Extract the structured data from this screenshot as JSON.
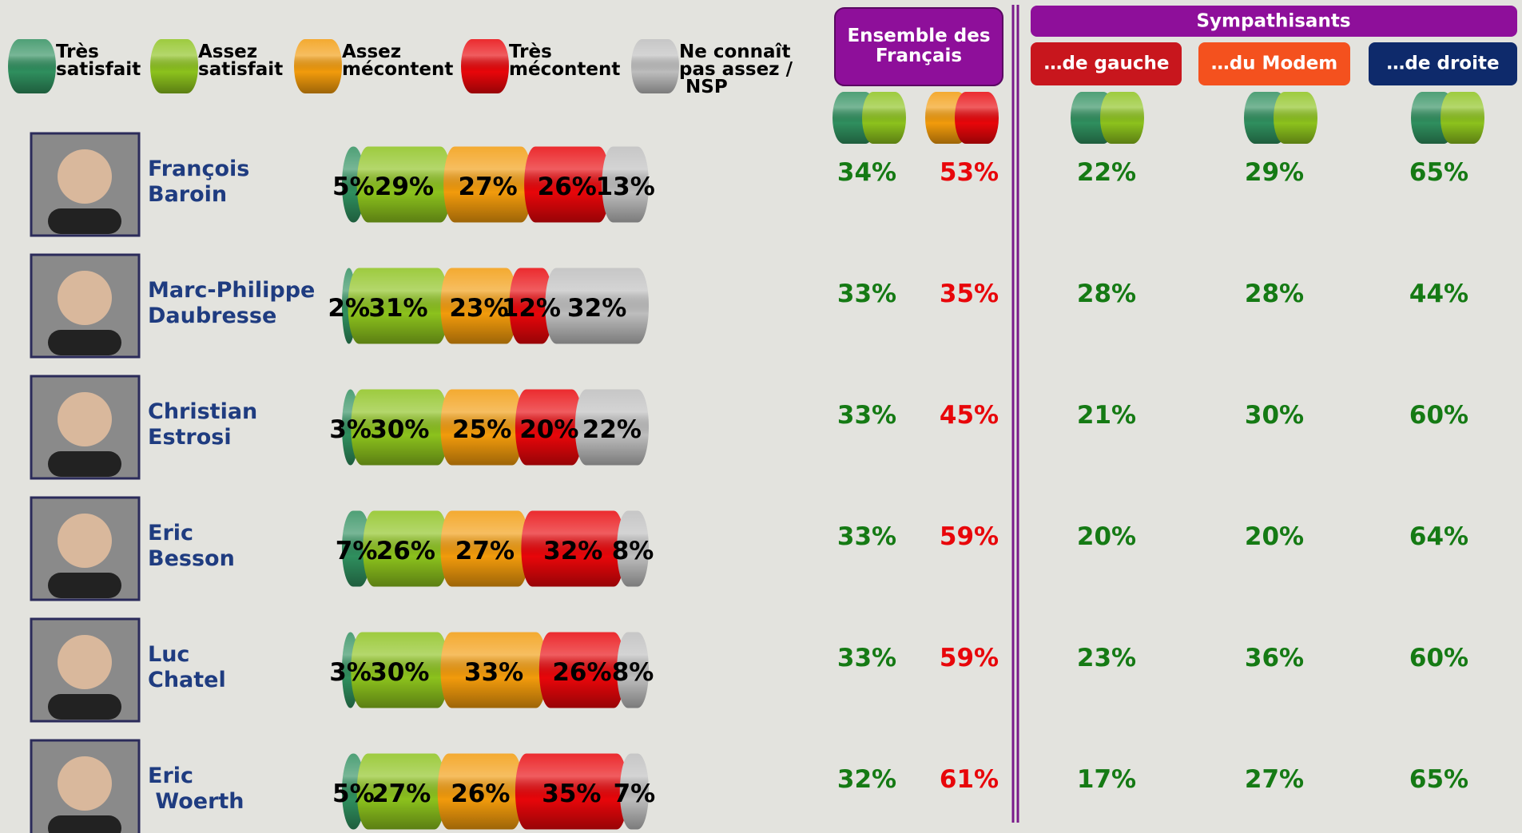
{
  "chart_data": {
    "type": "stacked-bar",
    "categories": [
      "François\nBaroin",
      "Marc-Philippe\nDaubresse",
      "Christian\nEstrosi",
      "Eric\nBesson",
      "Luc\nChatel",
      "Eric\n Woerth"
    ],
    "series": [
      {
        "name": "Très\nsatisfait",
        "color": "#2f8f5e",
        "values": [
          5,
          2,
          3,
          7,
          3,
          5
        ],
        "value_labels": [
          "5%",
          "2%",
          "3%",
          "7%",
          "3%",
          "5%"
        ]
      },
      {
        "name": "Assez\nsatisfait",
        "color": "#8cc21d",
        "values": [
          29,
          31,
          30,
          26,
          30,
          27
        ],
        "value_labels": [
          "29%",
          "31%",
          "30%",
          "26%",
          "30%",
          "27%"
        ]
      },
      {
        "name": "Assez\nmécontent",
        "color": "#f29b0c",
        "values": [
          27,
          23,
          25,
          27,
          33,
          26
        ],
        "value_labels": [
          "27%",
          "23%",
          "25%",
          "27%",
          "33%",
          "26%"
        ]
      },
      {
        "name": "Très\nmécontent",
        "color": "#e8060a",
        "values": [
          26,
          12,
          20,
          32,
          26,
          35
        ],
        "value_labels": [
          "26%",
          "12%",
          "20%",
          "32%",
          "26%",
          "35%"
        ]
      },
      {
        "name": "Ne connaît\npas assez /\n NSP",
        "color": "#bdbdbd",
        "values": [
          13,
          32,
          22,
          8,
          8,
          7
        ],
        "value_labels": [
          "13%",
          "32%",
          "22%",
          "8%",
          "8%",
          "7%"
        ]
      }
    ]
  },
  "table": {
    "ensemble_header": "Ensemble des\nFrançais",
    "group_header": "Sympathisants",
    "subheaders": [
      "…de gauche",
      "…du Modem",
      "…de droite"
    ],
    "rows": [
      [
        "34%",
        "53%",
        "22%",
        "29%",
        "65%"
      ],
      [
        "33%",
        "35%",
        "28%",
        "28%",
        "44%"
      ],
      [
        "33%",
        "45%",
        "21%",
        "30%",
        "60%"
      ],
      [
        "33%",
        "59%",
        "20%",
        "20%",
        "64%"
      ],
      [
        "33%",
        "59%",
        "23%",
        "36%",
        "60%"
      ],
      [
        "32%",
        "61%",
        "17%",
        "27%",
        "65%"
      ]
    ]
  }
}
